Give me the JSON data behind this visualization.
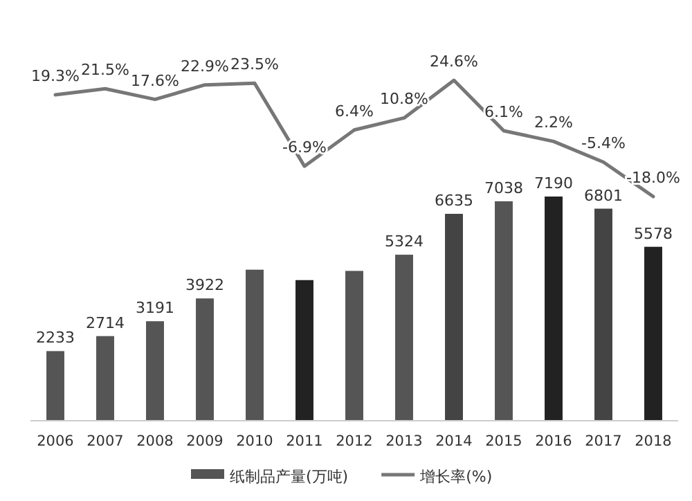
{
  "chart_data": {
    "type": "bar",
    "categories": [
      "2006",
      "2007",
      "2008",
      "2009",
      "2010",
      "2011",
      "2012",
      "2013",
      "2014",
      "2015",
      "2016",
      "2017",
      "2018"
    ],
    "ylim": [
      0,
      7190
    ],
    "tick_labels": "x",
    "legend": "bottom",
    "series": [
      {
        "name": "纸制品产量(万吨)",
        "color": "#555555",
        "colors": [
          "#555555",
          "#555555",
          "#555555",
          "#555555",
          "#555555",
          "#222222",
          "#555555",
          "#555555",
          "#444444",
          "#555555",
          "#222222",
          "#444444",
          "#222222"
        ],
        "values": [
          2233,
          2714,
          3191,
          3922,
          4844,
          4510,
          4805,
          5324,
          6635,
          7038,
          7190,
          6801,
          5578
        ],
        "value_labels": [
          "2233",
          "2714",
          "3191",
          "3922",
          null,
          null,
          null,
          "5324",
          "6635",
          "7038",
          "7190",
          "6801",
          "5578"
        ]
      },
      {
        "name": "增长率(%)",
        "type": "line",
        "axis": "y2",
        "color": "#777777",
        "values": [
          19.3,
          21.5,
          17.6,
          22.9,
          23.5,
          -6.9,
          6.4,
          10.8,
          24.6,
          6.1,
          2.2,
          -5.4,
          -18.0
        ],
        "value_labels": [
          "19.3%",
          "21.5%",
          "17.6%",
          "22.9%",
          "23.5%",
          "-6.9%",
          "6.4%",
          "10.8%",
          "24.6%",
          "6.1%",
          "2.2%",
          "-5.4%",
          "-18.0%"
        ]
      }
    ]
  }
}
